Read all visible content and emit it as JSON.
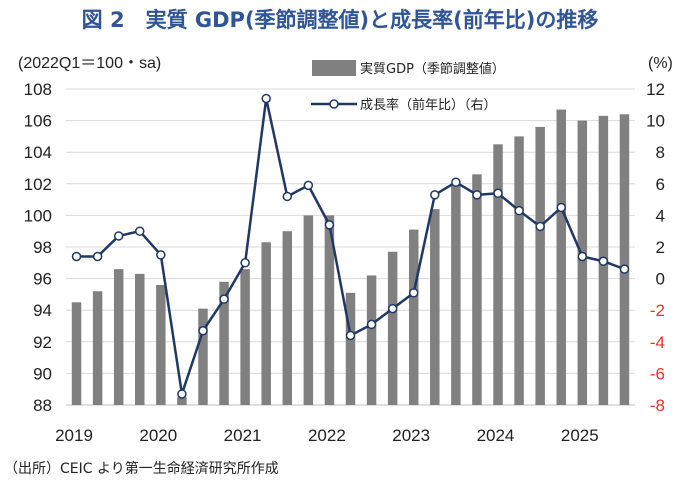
{
  "title": "図 2　実質 GDP(季節調整値)と成長率(前年比)の推移",
  "source": "（出所）CEIC より第一生命経済研究所作成",
  "chart_data": {
    "type": "bar+line",
    "left_axis_unit": "(2022Q1＝100・sa)",
    "right_axis_unit": "(%)",
    "ylim_left": [
      88,
      108
    ],
    "ylim_right": [
      -8,
      12
    ],
    "left_ticks": [
      "88",
      "90",
      "92",
      "94",
      "96",
      "98",
      "100",
      "102",
      "104",
      "106",
      "108"
    ],
    "right_ticks": [
      "-8",
      "-6",
      "-4",
      "-2",
      "0",
      "2",
      "4",
      "6",
      "8",
      "10",
      "12"
    ],
    "x_labels": [
      "2019",
      "2020",
      "2021",
      "2022",
      "2023",
      "2024",
      "2025"
    ],
    "quarters": [
      "2019Q1",
      "2019Q2",
      "2019Q3",
      "2019Q4",
      "2020Q1",
      "2020Q2",
      "2020Q3",
      "2020Q4",
      "2021Q1",
      "2021Q2",
      "2021Q3",
      "2021Q4",
      "2022Q1",
      "2022Q2",
      "2022Q3",
      "2022Q4",
      "2023Q1",
      "2023Q2",
      "2023Q3",
      "2023Q4",
      "2024Q1",
      "2024Q2",
      "2024Q3",
      "2024Q4",
      "2025Q1",
      "2025Q2",
      "2025Q3"
    ],
    "series": [
      {
        "name": "実質GDP（季節調整値）",
        "type": "bar",
        "axis": "left",
        "color": "#808080",
        "values": [
          94.5,
          95.2,
          96.6,
          96.3,
          95.6,
          88.5,
          94.1,
          95.8,
          96.6,
          98.3,
          99.0,
          100.0,
          100.0,
          95.1,
          96.2,
          97.7,
          99.1,
          100.4,
          101.9,
          102.6,
          104.5,
          105.0,
          105.6,
          106.7,
          106.0,
          106.3,
          106.4
        ]
      },
      {
        "name": "成長率（前年比）（右）",
        "type": "line",
        "axis": "right",
        "color": "#1F3864",
        "values": [
          1.4,
          1.4,
          2.7,
          3.0,
          1.5,
          -7.3,
          -3.3,
          -1.3,
          1.0,
          11.4,
          5.2,
          5.9,
          3.4,
          -3.6,
          -2.9,
          -1.9,
          -0.9,
          5.3,
          6.1,
          5.3,
          5.4,
          4.3,
          3.3,
          4.5,
          1.4,
          1.1,
          0.6
        ]
      }
    ]
  }
}
